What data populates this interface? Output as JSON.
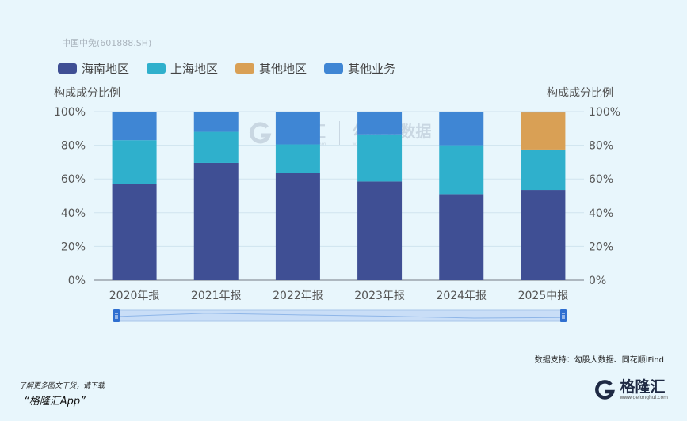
{
  "subtitle": "中国中免(601888.SH)",
  "colors": {
    "haina": "#3f4f94",
    "shanghai": "#2fb0cc",
    "other_region": "#d9a055",
    "other_business": "#3f86d4"
  },
  "legend": [
    {
      "label": "海南地区",
      "color": "#3f4f94"
    },
    {
      "label": "上海地区",
      "color": "#2fb0cc"
    },
    {
      "label": "其他地区",
      "color": "#d9a055"
    },
    {
      "label": "其他业务",
      "color": "#3f86d4"
    }
  ],
  "chart_data": {
    "type": "bar",
    "stacked": true,
    "categories": [
      "2020年报",
      "2021年报",
      "2022年报",
      "2023年报",
      "2024年报",
      "2025中报"
    ],
    "series": [
      {
        "name": "海南地区",
        "values": [
          57,
          69.5,
          63.5,
          58.5,
          51,
          53.5
        ]
      },
      {
        "name": "上海地区",
        "values": [
          26,
          18.5,
          17,
          28,
          29,
          24
        ]
      },
      {
        "name": "其他地区",
        "values": [
          0,
          0,
          0,
          0,
          0,
          22
        ]
      },
      {
        "name": "其他业务",
        "values": [
          17,
          12,
          19.5,
          13.5,
          20,
          0.5
        ]
      }
    ],
    "ylabel_left": "构成成分比例",
    "ylabel_right": "构成成分比例",
    "yticks": [
      "0%",
      "20%",
      "40%",
      "60%",
      "80%",
      "100%"
    ],
    "ylim": [
      0,
      100
    ],
    "legend_position": "top-left"
  },
  "watermark": {
    "brand": "格隆汇",
    "brand2": "勾股大数据",
    "url1": "www.gelonghui.com",
    "url2": "www.gogudata.com"
  },
  "source": "数据支持：勾股大数据、同花顺iFind",
  "footer": {
    "download_tip": "了解更多图文干货，请下载",
    "app_name": "“格隆汇App”",
    "brand": "格隆汇",
    "brand_url": "www.gelonghui.com"
  }
}
